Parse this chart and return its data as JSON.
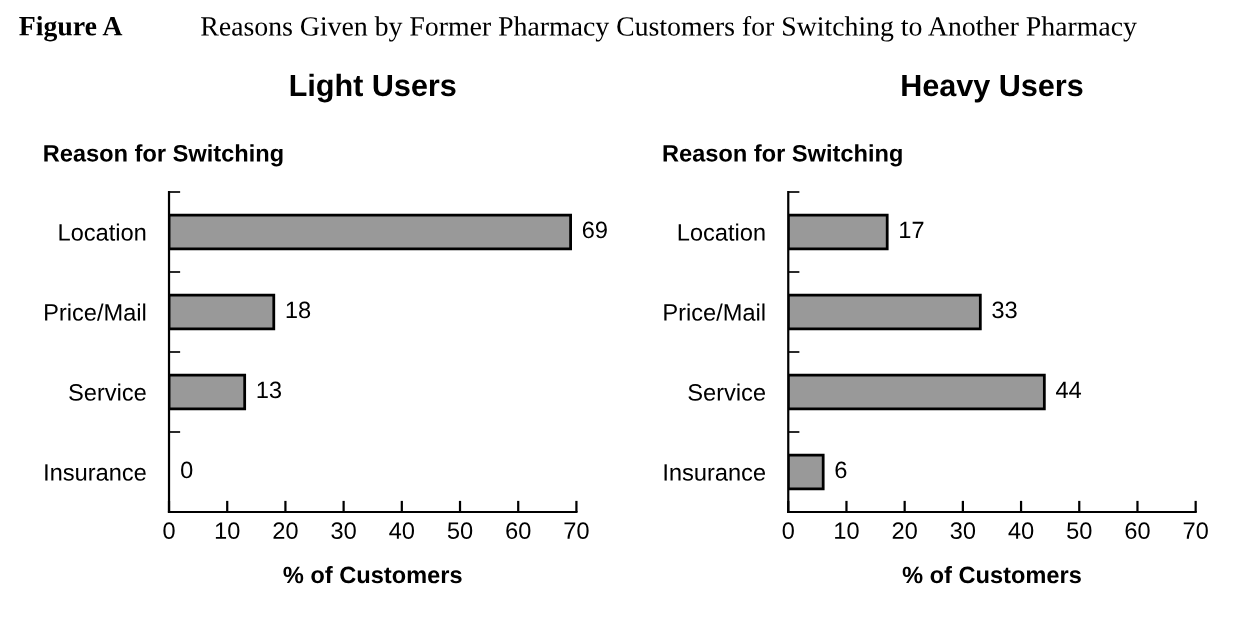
{
  "chart_data": [
    {
      "type": "bar",
      "orientation": "horizontal",
      "title": "Light Users",
      "ylabel": "Reason for Switching",
      "xlabel": "% of Customers",
      "categories": [
        "Location",
        "Price/Mail",
        "Service",
        "Insurance"
      ],
      "values": [
        69,
        18,
        13,
        0
      ],
      "color": "#999999",
      "xlim": [
        0,
        70
      ],
      "xticks": [
        0,
        10,
        20,
        30,
        40,
        50,
        60,
        70
      ],
      "data_labels": true,
      "grid": false,
      "annotations": [
        "Figure A",
        "Reasons Given by Former Pharmacy Customers for Switching to Another Pharmacy"
      ]
    },
    {
      "type": "bar",
      "orientation": "horizontal",
      "title": "Heavy Users",
      "ylabel": "Reason for Switching",
      "xlabel": "% of Customers",
      "categories": [
        "Location",
        "Price/Mail",
        "Service",
        "Insurance"
      ],
      "values": [
        17,
        33,
        44,
        6
      ],
      "color": "#999999",
      "xlim": [
        0,
        70
      ],
      "xticks": [
        0,
        10,
        20,
        30,
        40,
        50,
        60,
        70
      ],
      "data_labels": true,
      "grid": false
    }
  ]
}
